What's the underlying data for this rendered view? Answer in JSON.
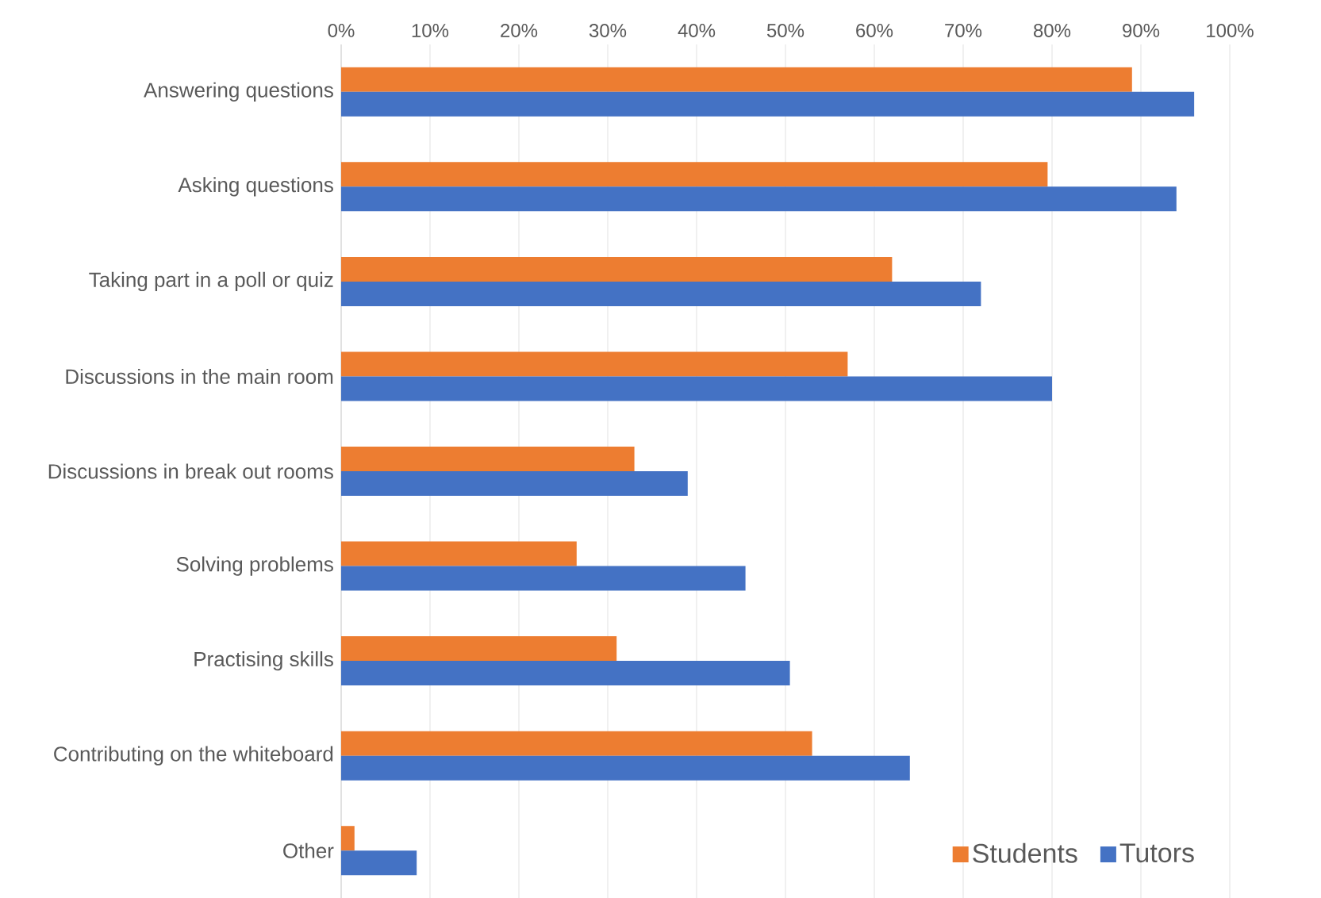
{
  "chart_data": {
    "type": "bar",
    "orientation": "horizontal",
    "categories": [
      "Answering questions",
      "Asking questions",
      "Taking part in a poll or quiz",
      "Discussions in the main room",
      "Discussions in break out rooms",
      "Solving problems",
      "Practising skills",
      "Contributing on the whiteboard",
      "Other"
    ],
    "series": [
      {
        "name": "Students",
        "color": "#ed7d31",
        "values": [
          89,
          79.5,
          62,
          57,
          33,
          26.5,
          31,
          53,
          1.5
        ]
      },
      {
        "name": "Tutors",
        "color": "#4472c4",
        "values": [
          96,
          94,
          72,
          80,
          39,
          45.5,
          50.5,
          64,
          8.5
        ]
      }
    ],
    "xlim": [
      0,
      100
    ],
    "xticks": [
      {
        "value": 0,
        "label": "0%"
      },
      {
        "value": 10,
        "label": "10%"
      },
      {
        "value": 20,
        "label": "20%"
      },
      {
        "value": 30,
        "label": "30%"
      },
      {
        "value": 40,
        "label": "40%"
      },
      {
        "value": 50,
        "label": "50%"
      },
      {
        "value": 60,
        "label": "60%"
      },
      {
        "value": 70,
        "label": "70%"
      },
      {
        "value": 80,
        "label": "80%"
      },
      {
        "value": 90,
        "label": "90%"
      },
      {
        "value": 100,
        "label": "100%"
      }
    ],
    "grid": "x",
    "legend": "bottom right"
  }
}
